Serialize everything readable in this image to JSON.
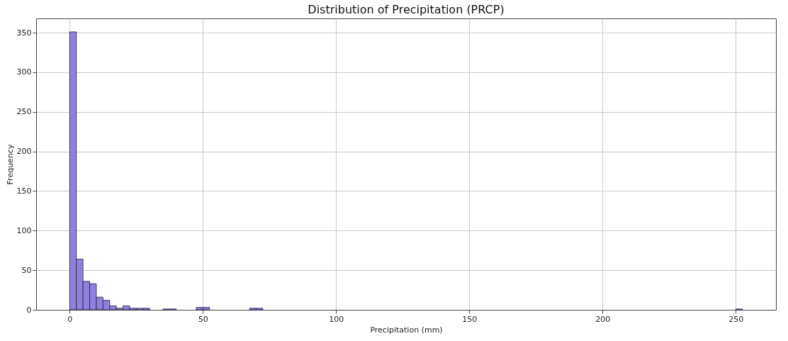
{
  "chart_data": {
    "type": "histogram",
    "title": "Distribution of Precipitation (PRCP)",
    "xlabel": "Precipitation (mm)",
    "ylabel": "Frequency",
    "color": "#8f80dc",
    "bins": [
      0,
      2.5,
      5,
      7.5,
      10,
      12.5,
      15,
      17.5,
      20,
      22.5,
      25,
      27.5,
      30,
      32.5,
      35,
      37.5,
      40,
      42.5,
      45,
      47.5,
      50,
      52.5,
      55,
      57.5,
      60,
      62.5,
      65,
      67.5,
      70,
      72.5,
      75,
      77.5,
      80,
      82.5,
      85,
      87.5,
      90,
      92.5,
      95,
      97.5,
      100,
      102.5,
      105,
      107.5,
      110,
      112.5,
      115,
      117.5,
      120,
      122.5,
      125,
      127.5,
      130,
      132.5,
      135,
      137.5,
      140,
      142.5,
      145,
      147.5,
      150,
      152.5,
      155,
      157.5,
      160,
      162.5,
      165,
      167.5,
      170,
      172.5,
      175,
      177.5,
      180,
      182.5,
      185,
      187.5,
      190,
      192.5,
      195,
      197.5,
      200,
      202.5,
      205,
      207.5,
      210,
      212.5,
      215,
      217.5,
      220,
      222.5,
      225,
      227.5,
      230,
      232.5,
      235,
      237.5,
      240,
      242.5,
      245,
      247.5,
      250,
      252.5
    ],
    "values": [
      351,
      64,
      36,
      33,
      16,
      12,
      5,
      2,
      5,
      2,
      2,
      2,
      0,
      0,
      1,
      1,
      0,
      0,
      0,
      3,
      3,
      0,
      0,
      0,
      0,
      0,
      0,
      2,
      2,
      0,
      0,
      0,
      0,
      0,
      0,
      0,
      0,
      0,
      0,
      0,
      0,
      0,
      0,
      0,
      0,
      0,
      0,
      0,
      0,
      0,
      0,
      0,
      0,
      0,
      0,
      0,
      0,
      0,
      0,
      0,
      0,
      0,
      0,
      0,
      0,
      0,
      0,
      0,
      0,
      0,
      0,
      0,
      0,
      0,
      0,
      0,
      0,
      0,
      0,
      0,
      0,
      0,
      0,
      0,
      0,
      0,
      0,
      0,
      0,
      0,
      0,
      0,
      0,
      0,
      0,
      0,
      0,
      0,
      0,
      0,
      1
    ],
    "xlim": [
      -12.6,
      265.1
    ],
    "ylim": [
      0,
      368
    ],
    "xticks": [
      0,
      50,
      100,
      150,
      200,
      250
    ],
    "yticks": [
      0,
      50,
      100,
      150,
      200,
      250,
      300,
      350
    ],
    "grid": true
  }
}
